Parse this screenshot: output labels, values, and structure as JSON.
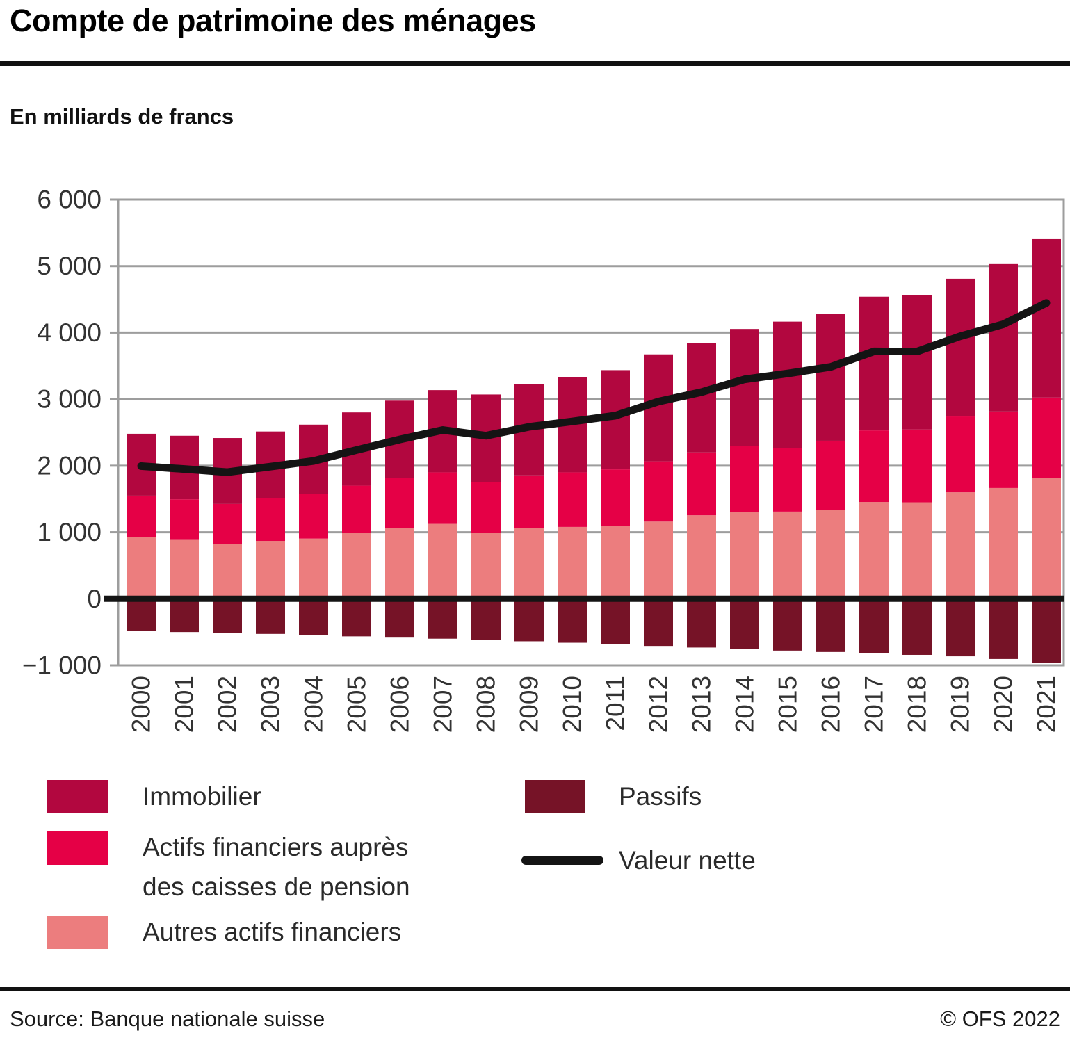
{
  "title": "Compte de patrimoine des ménages",
  "subtitle": "En milliards de francs",
  "footer": {
    "source": "Source: Banque nationale suisse",
    "copyright": "© OFS 2022"
  },
  "colors": {
    "immobilier": "#b2073f",
    "pension": "#e50046",
    "autres": "#ec7d7e",
    "passifs": "#761327",
    "net_line": "#141414",
    "grid": "#9d9d9d",
    "axis_text": "#333333"
  },
  "legend": {
    "immobilier": "Immobilier",
    "pension_line1": "Actifs financiers auprès",
    "pension_line2": "des caisses de pension",
    "autres": "Autres actifs financiers",
    "passifs": "Passifs",
    "net": "Valeur nette"
  },
  "chart_data": {
    "type": "bar",
    "stacked": true,
    "title": "Compte de patrimoine des ménages",
    "ylabel": "En milliards de francs",
    "xlabel": "",
    "grid": true,
    "legend_position": "bottom",
    "ylim": [
      -1000,
      6000
    ],
    "ytick_step": 1000,
    "ytick_values": [
      -1000,
      0,
      1000,
      2000,
      3000,
      4000,
      5000,
      6000
    ],
    "ytick_labels": [
      "−1 000",
      "0",
      "1 000",
      "2 000",
      "3 000",
      "4 000",
      "5 000",
      "6 000"
    ],
    "categories": [
      "2000",
      "2001",
      "2002",
      "2003",
      "2004",
      "2005",
      "2006",
      "2007",
      "2008",
      "2009",
      "2010",
      "2011",
      "2012",
      "2013",
      "2014",
      "2015",
      "2016",
      "2017",
      "2018",
      "2019",
      "2020",
      "2021"
    ],
    "series": [
      {
        "name": "Autres actifs financiers",
        "kind": "bar",
        "color_key": "autres",
        "values": [
          930,
          885,
          825,
          870,
          905,
          985,
          1065,
          1125,
          990,
          1065,
          1080,
          1090,
          1160,
          1255,
          1300,
          1310,
          1340,
          1455,
          1450,
          1600,
          1665,
          1820
        ]
      },
      {
        "name": "Actifs financiers auprès des caisses de pension",
        "kind": "bar",
        "color_key": "pension",
        "values": [
          620,
          610,
          600,
          640,
          670,
          715,
          755,
          775,
          765,
          790,
          820,
          855,
          905,
          945,
          1000,
          950,
          1035,
          1075,
          1095,
          1140,
          1150,
          1205
        ]
      },
      {
        "name": "Immobilier",
        "kind": "bar",
        "color_key": "immobilier",
        "values": [
          930,
          955,
          991,
          1004,
          1042,
          1101,
          1158,
          1236,
          1315,
          1368,
          1426,
          1491,
          1608,
          1639,
          1755,
          1905,
          1910,
          2010,
          2015,
          2070,
          2215,
          2380
        ]
      },
      {
        "name": "Passifs",
        "kind": "bar",
        "color_key": "passifs",
        "values": [
          -486,
          -500,
          -513,
          -528,
          -546,
          -565,
          -584,
          -600,
          -619,
          -639,
          -661,
          -684,
          -709,
          -733,
          -757,
          -779,
          -800,
          -822,
          -843,
          -865,
          -905,
          -960
        ]
      },
      {
        "name": "Valeur nette",
        "kind": "line",
        "color_key": "net_line",
        "values": [
          1994,
          1950,
          1903,
          1986,
          2071,
          2236,
          2394,
          2536,
          2451,
          2584,
          2665,
          2752,
          2964,
          3106,
          3298,
          3386,
          3485,
          3718,
          3717,
          3945,
          4125,
          4445
        ]
      }
    ]
  }
}
